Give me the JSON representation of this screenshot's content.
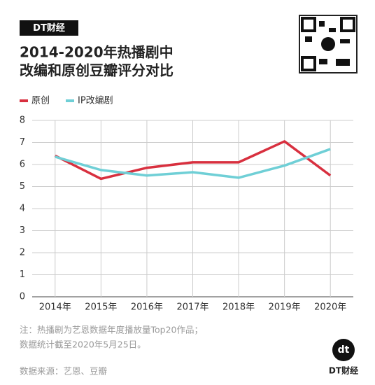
{
  "brand": "DT财经",
  "chart_data": {
    "type": "line",
    "title": [
      "2014-2020年热播剧中",
      "改编和原创豆瓣评分对比"
    ],
    "categories": [
      "2014年",
      "2015年",
      "2016年",
      "2017年",
      "2018年",
      "2019年",
      "2020年"
    ],
    "series": [
      {
        "name": "原创",
        "color": "#d8303f",
        "values": [
          6.4,
          5.35,
          5.85,
          6.1,
          6.1,
          7.05,
          5.5
        ]
      },
      {
        "name": "IP改编剧",
        "color": "#6fcfd6",
        "values": [
          6.35,
          5.75,
          5.5,
          5.65,
          5.4,
          5.95,
          6.7
        ]
      }
    ],
    "ylim": [
      0,
      8
    ],
    "yticks": [
      0,
      1,
      2,
      3,
      4,
      5,
      6,
      7,
      8
    ],
    "grid": true,
    "notes": [
      "注：热播剧为艺恩数据年度播放量Top20作品；",
      "数据统计截至2020年5月25日。"
    ],
    "source": "数据来源：艺恩、豆瓣"
  },
  "footer_logo": {
    "mark": "dt",
    "text": "DT财经"
  }
}
